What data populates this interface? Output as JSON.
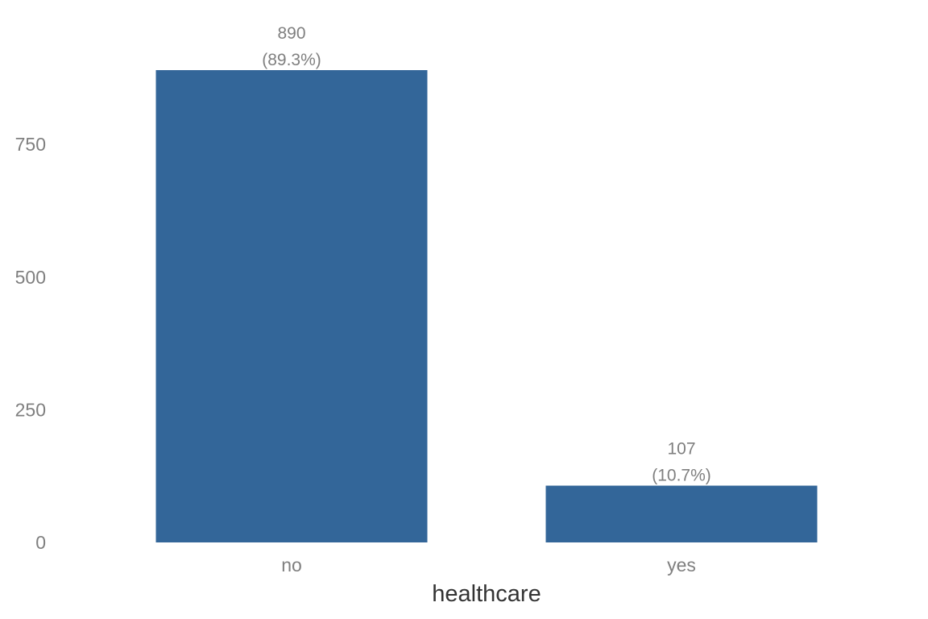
{
  "chart_data": {
    "type": "bar",
    "categories": [
      "no",
      "yes"
    ],
    "values": [
      890,
      107
    ],
    "value_labels": [
      "890",
      "107"
    ],
    "percent_labels": [
      "(89.3%)",
      "(10.7%)"
    ],
    "xlabel": "healthcare",
    "ylabel": "",
    "yticks": [
      0,
      250,
      500,
      750
    ],
    "ylim": [
      0,
      890
    ],
    "grid": false,
    "bar_color": "#336699"
  }
}
